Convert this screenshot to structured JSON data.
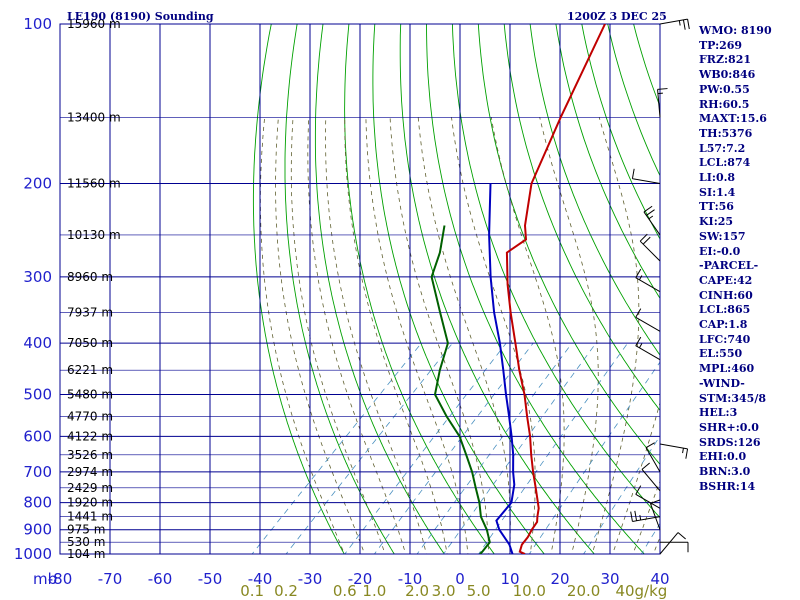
{
  "header": {
    "station": "LE190 (8190) Sounding",
    "time": "1200Z  3 DEC 25"
  },
  "indices": [
    "WMO: 8190",
    "TP:269",
    "FRZ:821",
    "WB0:846",
    "PW:0.55",
    "RH:60.5",
    "MAXT:15.6",
    "TH:5376",
    "L57:7.2",
    "LCL:874",
    "LI:0.8",
    "SI:1.4",
    "TT:56",
    "KI:25",
    "SW:157",
    "EI:-0.0",
    "-PARCEL-",
    "CAPE:42",
    "CINH:60",
    "LCL:865",
    "CAP:1.8",
    "LFC:740",
    "EL:550",
    "MPL:460",
    "-WIND-",
    "STM:345/8",
    "HEL:3",
    "SHR+:0.0",
    "SRDS:126",
    "EHI:0.0",
    "BRN:3.0",
    "BSHR:14"
  ],
  "colors": {
    "isobar": "#000090",
    "dry_adiabat": "#00a000",
    "moist_adiabat": "#606030",
    "mixing_ratio": "#4a90c0",
    "temperature": "#c00000",
    "dewpoint": "#006000",
    "parcel": "#0000c0",
    "axis_text": "#2020cc",
    "mixing_text": "#888822"
  },
  "chart_data": {
    "type": "line",
    "title": "LE190 (8190) Sounding",
    "xlabel": "",
    "ylabel": "mb",
    "x_range": [
      -80,
      40
    ],
    "x_ticks": [
      -80,
      -70,
      -60,
      -50,
      -40,
      -30,
      -20,
      -10,
      0,
      10,
      20,
      30,
      40
    ],
    "y_range": [
      100,
      1000
    ],
    "y_scale": "log",
    "pressure_levels": [
      100,
      200,
      300,
      400,
      500,
      600,
      700,
      800,
      900,
      1000
    ],
    "height_labels": [
      {
        "p": 100,
        "label": "15960 m"
      },
      {
        "p": 150,
        "label": "13400 m"
      },
      {
        "p": 200,
        "label": "11560 m"
      },
      {
        "p": 250,
        "label": "10130 m"
      },
      {
        "p": 300,
        "label": "8960 m"
      },
      {
        "p": 350,
        "label": "7937 m"
      },
      {
        "p": 400,
        "label": "7050 m"
      },
      {
        "p": 450,
        "label": "6221 m"
      },
      {
        "p": 500,
        "label": "5480 m"
      },
      {
        "p": 550,
        "label": "4770 m"
      },
      {
        "p": 600,
        "label": "4122 m"
      },
      {
        "p": 650,
        "label": "3526 m"
      },
      {
        "p": 700,
        "label": "2974 m"
      },
      {
        "p": 750,
        "label": "2429 m"
      },
      {
        "p": 800,
        "label": "1920 m"
      },
      {
        "p": 850,
        "label": "1441 m"
      },
      {
        "p": 900,
        "label": "975 m"
      },
      {
        "p": 950,
        "label": "530 m"
      },
      {
        "p": 1000,
        "label": "104 m"
      }
    ],
    "mixing_ratio_labels": [
      "0.1",
      "0.2",
      "0.6",
      "1.0",
      "2.0",
      "3.0",
      "5.0",
      "10.0",
      "20.0",
      "40g/kg"
    ],
    "mixing_ratio_values": [
      0.1,
      0.2,
      0.6,
      1.0,
      2.0,
      3.0,
      5.0,
      10.0,
      20.0,
      40.0
    ],
    "series": [
      {
        "role": "temperature",
        "points": [
          {
            "p": 1000,
            "t": 13.0
          },
          {
            "p": 990,
            "t": 11.5
          },
          {
            "p": 960,
            "t": 10.5
          },
          {
            "p": 930,
            "t": 10.2
          },
          {
            "p": 900,
            "t": 9.5
          },
          {
            "p": 870,
            "t": 9.0
          },
          {
            "p": 850,
            "t": 8.0
          },
          {
            "p": 820,
            "t": 6.6
          },
          {
            "p": 800,
            "t": 5.3
          },
          {
            "p": 750,
            "t": 1.9
          },
          {
            "p": 700,
            "t": -1.8
          },
          {
            "p": 650,
            "t": -5.6
          },
          {
            "p": 600,
            "t": -9.5
          },
          {
            "p": 550,
            "t": -14.1
          },
          {
            "p": 500,
            "t": -19.0
          },
          {
            "p": 450,
            "t": -24.9
          },
          {
            "p": 400,
            "t": -31.1
          },
          {
            "p": 350,
            "t": -38.2
          },
          {
            "p": 310,
            "t": -44.4
          },
          {
            "p": 270,
            "t": -50.9
          },
          {
            "p": 255,
            "t": -49.7
          },
          {
            "p": 240,
            "t": -52.7
          },
          {
            "p": 200,
            "t": -59.8
          },
          {
            "p": 150,
            "t": -67.2
          },
          {
            "p": 100,
            "t": -77.0
          }
        ]
      },
      {
        "role": "dewpoint",
        "points": [
          {
            "p": 1000,
            "t": 4.0
          },
          {
            "p": 990,
            "t": 4.0
          },
          {
            "p": 950,
            "t": 3.6
          },
          {
            "p": 900,
            "t": 0.5
          },
          {
            "p": 850,
            "t": -3.3
          },
          {
            "p": 800,
            "t": -6.4
          },
          {
            "p": 750,
            "t": -10.1
          },
          {
            "p": 700,
            "t": -14.0
          },
          {
            "p": 650,
            "t": -18.6
          },
          {
            "p": 600,
            "t": -23.6
          },
          {
            "p": 550,
            "t": -30.2
          },
          {
            "p": 500,
            "t": -36.9
          },
          {
            "p": 450,
            "t": -40.8
          },
          {
            "p": 400,
            "t": -44.6
          },
          {
            "p": 350,
            "t": -52.3
          },
          {
            "p": 300,
            "t": -61.1
          },
          {
            "p": 270,
            "t": -64.3
          },
          {
            "p": 240,
            "t": -68.8
          }
        ]
      },
      {
        "role": "parcel",
        "points": [
          {
            "p": 1000,
            "t": 10.5
          },
          {
            "p": 960,
            "t": 8.0
          },
          {
            "p": 900,
            "t": 3.0
          },
          {
            "p": 865,
            "t": 0.6
          },
          {
            "p": 800,
            "t": 0.0
          },
          {
            "p": 740,
            "t": -3.0
          },
          {
            "p": 700,
            "t": -5.8
          },
          {
            "p": 650,
            "t": -9.2
          },
          {
            "p": 600,
            "t": -13.2
          },
          {
            "p": 550,
            "t": -17.7
          },
          {
            "p": 500,
            "t": -22.7
          },
          {
            "p": 450,
            "t": -28.1
          },
          {
            "p": 400,
            "t": -34.2
          },
          {
            "p": 350,
            "t": -41.5
          },
          {
            "p": 300,
            "t": -49.3
          },
          {
            "p": 250,
            "t": -58.0
          },
          {
            "p": 200,
            "t": -68.0
          }
        ]
      }
    ],
    "wind_profile": [
      {
        "p": 100,
        "dir": 80,
        "spd": 25
      },
      {
        "p": 150,
        "dir": 355,
        "spd": 15
      },
      {
        "p": 200,
        "dir": 280,
        "spd": 10
      },
      {
        "p": 250,
        "dir": 325,
        "spd": 25
      },
      {
        "p": 280,
        "dir": 315,
        "spd": 20
      },
      {
        "p": 320,
        "dir": 300,
        "spd": 15
      },
      {
        "p": 380,
        "dir": 300,
        "spd": 10
      },
      {
        "p": 430,
        "dir": 300,
        "spd": 15
      },
      {
        "p": 620,
        "dir": 100,
        "spd": 15
      },
      {
        "p": 700,
        "dir": 330,
        "spd": 10
      },
      {
        "p": 760,
        "dir": 320,
        "spd": 10
      },
      {
        "p": 820,
        "dir": 300,
        "spd": 10
      },
      {
        "p": 850,
        "dir": 260,
        "spd": 25
      },
      {
        "p": 900,
        "dir": 340,
        "spd": 10
      },
      {
        "p": 950,
        "dir": 90,
        "spd": 10
      },
      {
        "p": 1000,
        "dir": 40,
        "spd": 10
      }
    ]
  }
}
